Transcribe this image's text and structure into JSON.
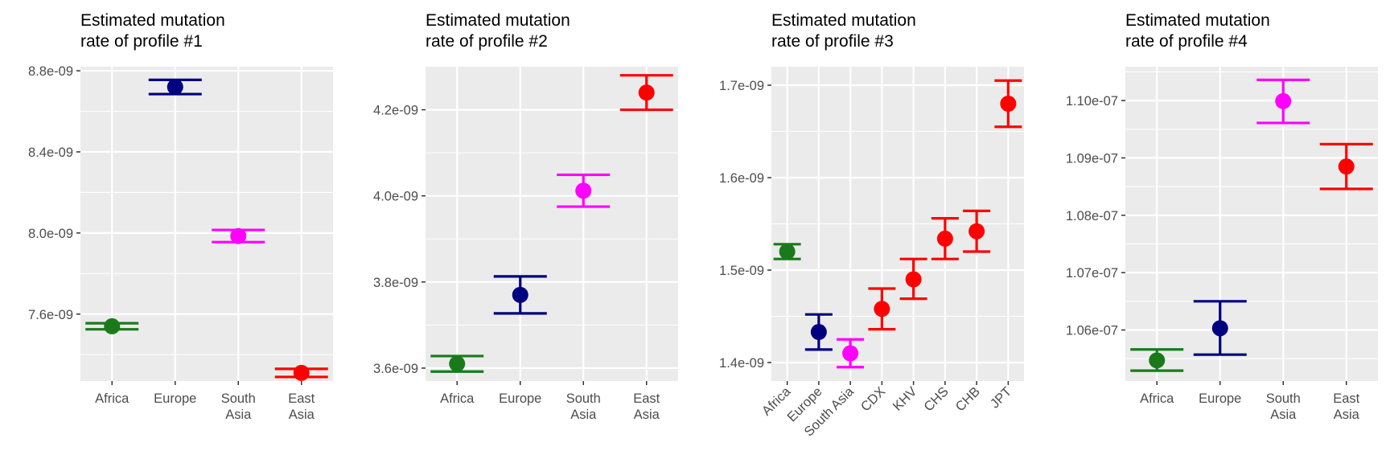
{
  "chart_data": [
    {
      "type": "errorbar",
      "title": [
        "Estimated mutation",
        "rate of profile #1"
      ],
      "categories": [
        "Africa",
        "Europe",
        "South Asia",
        "East Asia"
      ],
      "category_labels": [
        [
          "Africa"
        ],
        [
          "Europe"
        ],
        [
          "South",
          "Asia"
        ],
        [
          "East",
          "Asia"
        ]
      ],
      "x_label_style": "horizontal",
      "ylim": [
        7.27e-09,
        8.82e-09
      ],
      "yticks": [
        7.6e-09,
        8e-09,
        8.4e-09,
        8.8e-09
      ],
      "ytick_labels": [
        "7.6e-09",
        "8.0e-09",
        "8.4e-09",
        "8.8e-09"
      ],
      "series": [
        {
          "category": "Africa",
          "value": 7.54e-09,
          "lower": 7.525e-09,
          "upper": 7.555e-09,
          "color": "#1a7a1a"
        },
        {
          "category": "Europe",
          "value": 8.72e-09,
          "lower": 8.685e-09,
          "upper": 8.755e-09,
          "color": "#000080"
        },
        {
          "category": "South Asia",
          "value": 7.985e-09,
          "lower": 7.955e-09,
          "upper": 8.015e-09,
          "color": "#ff00ff"
        },
        {
          "category": "East Asia",
          "value": 7.31e-09,
          "lower": 7.29e-09,
          "upper": 7.33e-09,
          "color": "#ff0000"
        }
      ]
    },
    {
      "type": "errorbar",
      "title": [
        "Estimated mutation",
        "rate of profile #2"
      ],
      "categories": [
        "Africa",
        "Europe",
        "South Asia",
        "East Asia"
      ],
      "category_labels": [
        [
          "Africa"
        ],
        [
          "Europe"
        ],
        [
          "South",
          "Asia"
        ],
        [
          "East",
          "Asia"
        ]
      ],
      "x_label_style": "horizontal",
      "ylim": [
        3.57e-09,
        4.3e-09
      ],
      "yticks": [
        3.6e-09,
        3.8e-09,
        4e-09,
        4.2e-09
      ],
      "ytick_labels": [
        "3.6e-09",
        "3.8e-09",
        "4.0e-09",
        "4.2e-09"
      ],
      "series": [
        {
          "category": "Africa",
          "value": 3.61e-09,
          "lower": 3.592e-09,
          "upper": 3.628e-09,
          "color": "#1a7a1a"
        },
        {
          "category": "Europe",
          "value": 3.77e-09,
          "lower": 3.727e-09,
          "upper": 3.813e-09,
          "color": "#000080"
        },
        {
          "category": "South Asia",
          "value": 4.012e-09,
          "lower": 3.975e-09,
          "upper": 4.049e-09,
          "color": "#ff00ff"
        },
        {
          "category": "East Asia",
          "value": 4.24e-09,
          "lower": 4.2e-09,
          "upper": 4.28e-09,
          "color": "#ff0000"
        }
      ]
    },
    {
      "type": "errorbar",
      "title": [
        "Estimated mutation",
        "rate of profile #3"
      ],
      "categories": [
        "Africa",
        "Europe",
        "South Asia",
        "CDX",
        "KHV",
        "CHS",
        "CHB",
        "JPT"
      ],
      "category_labels": [
        [
          "Africa"
        ],
        [
          "Europe"
        ],
        [
          "South Asia"
        ],
        [
          "CDX"
        ],
        [
          "KHV"
        ],
        [
          "CHS"
        ],
        [
          "CHB"
        ],
        [
          "JPT"
        ]
      ],
      "x_label_style": "rotated",
      "ylim": [
        1.38e-09,
        1.72e-09
      ],
      "yticks": [
        1.4e-09,
        1.5e-09,
        1.6e-09,
        1.7e-09
      ],
      "ytick_labels": [
        "1.4e-09",
        "1.5e-09",
        "1.6e-09",
        "1.7e-09"
      ],
      "series": [
        {
          "category": "Africa",
          "value": 1.52e-09,
          "lower": 1.512e-09,
          "upper": 1.528e-09,
          "color": "#1a7a1a"
        },
        {
          "category": "Europe",
          "value": 1.433e-09,
          "lower": 1.414e-09,
          "upper": 1.452e-09,
          "color": "#000080"
        },
        {
          "category": "South Asia",
          "value": 1.41e-09,
          "lower": 1.395e-09,
          "upper": 1.425e-09,
          "color": "#ff00ff"
        },
        {
          "category": "CDX",
          "value": 1.458e-09,
          "lower": 1.436e-09,
          "upper": 1.48e-09,
          "color": "#ff0000"
        },
        {
          "category": "KHV",
          "value": 1.49e-09,
          "lower": 1.469e-09,
          "upper": 1.512e-09,
          "color": "#ff0000"
        },
        {
          "category": "CHS",
          "value": 1.534e-09,
          "lower": 1.512e-09,
          "upper": 1.556e-09,
          "color": "#ff0000"
        },
        {
          "category": "CHB",
          "value": 1.542e-09,
          "lower": 1.52e-09,
          "upper": 1.564e-09,
          "color": "#ff0000"
        },
        {
          "category": "JPT",
          "value": 1.68e-09,
          "lower": 1.655e-09,
          "upper": 1.705e-09,
          "color": "#ff0000"
        }
      ]
    },
    {
      "type": "errorbar",
      "title": [
        "Estimated mutation",
        "rate of profile #4"
      ],
      "categories": [
        "Africa",
        "Europe",
        "South Asia",
        "East Asia"
      ],
      "category_labels": [
        [
          "Africa"
        ],
        [
          "Europe"
        ],
        [
          "South",
          "Asia"
        ],
        [
          "East",
          "Asia"
        ]
      ],
      "x_label_style": "horizontal",
      "ylim": [
        1.0511e-07,
        1.1059e-07
      ],
      "yticks": [
        1.06e-07,
        1.07e-07,
        1.08e-07,
        1.09e-07,
        1.1e-07
      ],
      "ytick_labels": [
        "1.06e-07",
        "1.07e-07",
        "1.08e-07",
        "1.09e-07",
        "1.10e-07"
      ],
      "series": [
        {
          "category": "Africa",
          "value": 1.0547e-07,
          "lower": 1.0529e-07,
          "upper": 1.0566e-07,
          "color": "#1a7a1a"
        },
        {
          "category": "Europe",
          "value": 1.0603e-07,
          "lower": 1.0557e-07,
          "upper": 1.065e-07,
          "color": "#000080"
        },
        {
          "category": "South Asia",
          "value": 1.0999e-07,
          "lower": 1.0961e-07,
          "upper": 1.1036e-07,
          "color": "#ff00ff"
        },
        {
          "category": "East Asia",
          "value": 1.0885e-07,
          "lower": 1.0846e-07,
          "upper": 1.0924e-07,
          "color": "#ff0000"
        }
      ]
    }
  ]
}
